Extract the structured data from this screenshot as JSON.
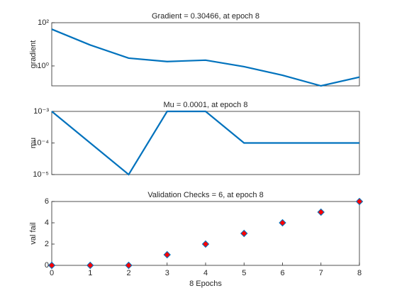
{
  "chart_data": [
    {
      "type": "line",
      "title": "Gradient = 0.30466, at epoch 8",
      "ylabel": "gradient",
      "x": [
        0,
        1,
        2,
        3,
        4,
        5,
        6,
        7,
        8
      ],
      "values": [
        50,
        9.3,
        2.3,
        1.6,
        1.85,
        0.93,
        0.37,
        0.12,
        0.30466
      ],
      "xlim": [
        0,
        8
      ],
      "ylim": [
        0.12,
        100
      ],
      "log_y": true,
      "yticks": [
        {
          "value": 100,
          "label": "10²"
        },
        {
          "value": 1,
          "label": "10⁰"
        }
      ],
      "color": "#0072bd"
    },
    {
      "type": "line",
      "title": "Mu = 0.0001, at epoch 8",
      "ylabel": "mu",
      "x": [
        0,
        1,
        2,
        3,
        4,
        5,
        6,
        7,
        8
      ],
      "values": [
        0.001,
        0.0001,
        1e-05,
        0.001,
        0.001,
        0.0001,
        0.0001,
        0.0001,
        0.0001
      ],
      "xlim": [
        0,
        8
      ],
      "ylim": [
        1e-05,
        0.001
      ],
      "log_y": true,
      "yticks": [
        {
          "value": 0.001,
          "label": "10⁻³"
        },
        {
          "value": 0.0001,
          "label": "10⁻⁴"
        },
        {
          "value": 1e-05,
          "label": "10⁻⁵"
        }
      ],
      "color": "#0072bd"
    },
    {
      "type": "scatter",
      "title": "Validation Checks = 6, at epoch 8",
      "ylabel": "val fail",
      "xlabel": "8 Epochs",
      "x": [
        0,
        1,
        2,
        3,
        4,
        5,
        6,
        7,
        8
      ],
      "values": [
        0,
        0,
        0,
        1,
        2,
        3,
        4,
        5,
        6
      ],
      "xlim": [
        0,
        8
      ],
      "ylim": [
        0,
        6
      ],
      "log_y": false,
      "xticks": [
        0,
        1,
        2,
        3,
        4,
        5,
        6,
        7,
        8
      ],
      "yticks": [
        0,
        2,
        4,
        6
      ],
      "color": "#ff0000",
      "edge_color": "#0072bd"
    }
  ]
}
